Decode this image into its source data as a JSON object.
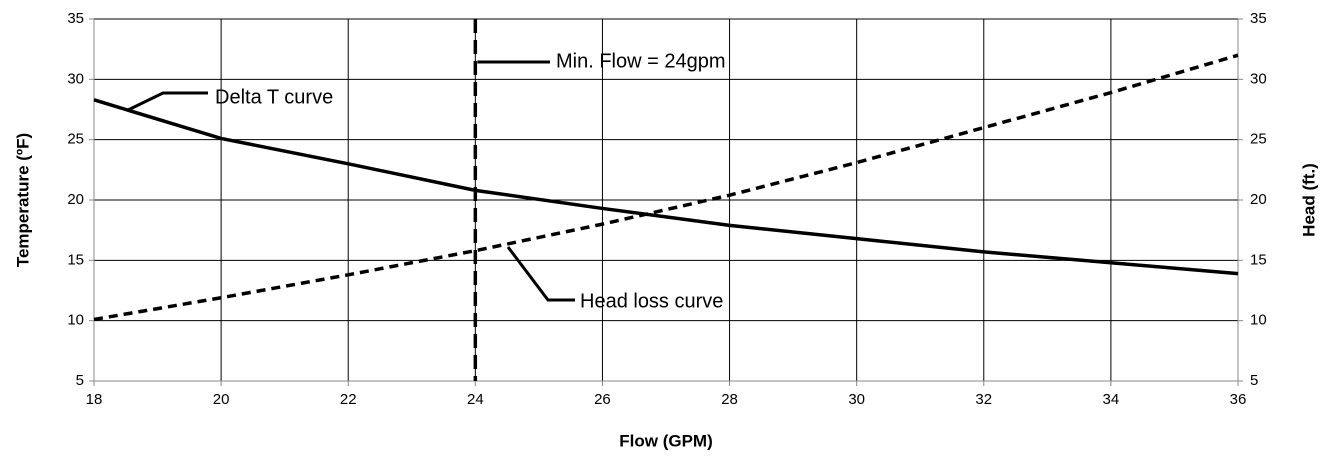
{
  "chart_data": {
    "type": "line",
    "xlabel": "Flow (GPM)",
    "ylabel": "Temperature (ºF)",
    "y2label": "Head (ft.)",
    "x": [
      18,
      20,
      22,
      24,
      26,
      28,
      30,
      32,
      34,
      36
    ],
    "series": [
      {
        "name": "Delta T curve",
        "color": "#000000",
        "line_style": "solid",
        "values": [
          28.3,
          25.1,
          23,
          20.8,
          19.3,
          17.9,
          16.8,
          15.7,
          14.8,
          13.9
        ]
      },
      {
        "name": "Head loss curve",
        "color": "#000000",
        "line_style": "dashed",
        "axis": "y2",
        "values": [
          10.1,
          11.9,
          13.8,
          15.8,
          18,
          20.4,
          23.1,
          26,
          28.9,
          32
        ]
      }
    ],
    "annotations": [
      {
        "text": "Min. Flow = 24gpm",
        "x": 24
      }
    ],
    "xlim": [
      18,
      36
    ],
    "xticks": [
      18,
      20,
      22,
      24,
      26,
      28,
      30,
      32,
      34,
      36
    ],
    "ylim": [
      5,
      35
    ],
    "yticks": [
      5,
      10,
      15,
      20,
      25,
      30,
      35
    ],
    "y2lim": [
      5,
      35
    ],
    "y2ticks": [
      5,
      10,
      15,
      20,
      25,
      30,
      35
    ],
    "grid": true
  }
}
